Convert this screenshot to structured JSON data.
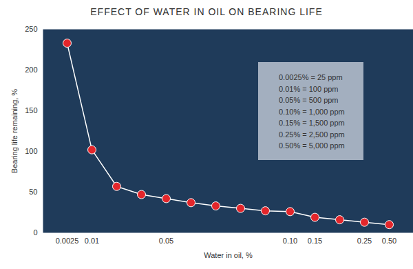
{
  "chart_data": {
    "type": "line",
    "title": "EFFECT OF WATER IN OIL ON BEARING LIFE",
    "x_label": "Water in oil, %",
    "y_label": "Bearing life remaining, %",
    "categories": [
      "0.0025",
      "0.01",
      null,
      null,
      "0.05",
      null,
      null,
      null,
      null,
      "0.10",
      "0.15",
      null,
      "0.25",
      "0.50"
    ],
    "values": [
      233,
      102,
      57,
      47,
      42,
      37,
      33,
      30,
      27,
      26,
      19,
      16,
      13,
      10
    ],
    "color": "#ffffff",
    "marker": "circle",
    "ylim": [
      0,
      250
    ],
    "yticks": [
      0,
      50,
      100,
      150,
      200,
      250
    ],
    "grid": false,
    "annotation": [
      "0.0025% = 25 ppm",
      "0.01% = 100 ppm",
      "0.05% = 500 ppm",
      "0.10% = 1,000 ppm",
      "0.15% = 1,500 ppm",
      "0.25% = 2,500 ppm",
      "0.50% = 5,000 ppm"
    ]
  }
}
